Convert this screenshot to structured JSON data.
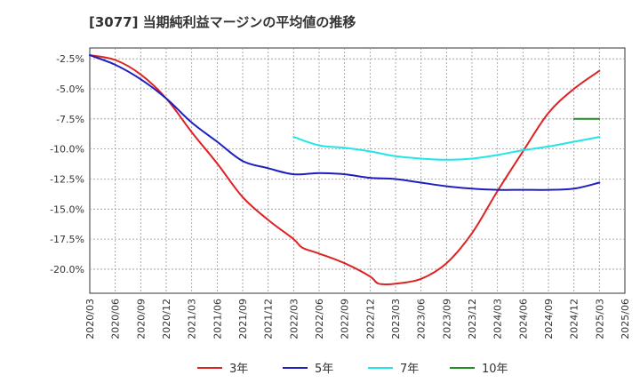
{
  "chart_data": {
    "type": "line",
    "title": "[3077]  当期純利益マージンの平均値の推移",
    "xlabel": "",
    "ylabel": "",
    "x_ticks": [
      "2020/03",
      "2020/06",
      "2020/09",
      "2020/12",
      "2021/03",
      "2021/06",
      "2021/09",
      "2021/12",
      "2022/03",
      "2022/06",
      "2022/09",
      "2022/12",
      "2023/03",
      "2023/06",
      "2023/09",
      "2023/12",
      "2024/03",
      "2024/06",
      "2024/09",
      "2024/12",
      "2025/03",
      "2025/06"
    ],
    "y_ticks": [
      -2.5,
      -5.0,
      -7.5,
      -10.0,
      -12.5,
      -15.0,
      -17.5,
      -20.0
    ],
    "y_tick_labels": [
      "-2.5%",
      "-5.0%",
      "-7.5%",
      "-10.0%",
      "-12.5%",
      "-15.0%",
      "-17.5%",
      "-20.0%"
    ],
    "ylim": [
      -22.0,
      -1.6
    ],
    "grid": true,
    "legend_position": "bottom",
    "series": [
      {
        "name": "3年",
        "color": "#dd2222",
        "x": [
          "2020/03",
          "2020/06",
          "2020/09",
          "2020/12",
          "2021/03",
          "2021/06",
          "2021/09",
          "2021/12",
          "2022/03",
          "2022/04",
          "2022/06",
          "2022/09",
          "2022/12",
          "2023/01",
          "2023/03",
          "2023/06",
          "2023/09",
          "2023/12",
          "2024/03",
          "2024/06",
          "2024/09",
          "2024/12",
          "2025/03"
        ],
        "values": [
          -2.2,
          -2.6,
          -3.8,
          -5.8,
          -8.6,
          -11.2,
          -14.0,
          -15.9,
          -17.5,
          -18.2,
          -18.7,
          -19.5,
          -20.6,
          -21.2,
          -21.2,
          -20.8,
          -19.5,
          -17.0,
          -13.5,
          -10.2,
          -7.0,
          -5.0,
          -3.5
        ]
      },
      {
        "name": "5年",
        "color": "#1f1fbf",
        "x": [
          "2020/03",
          "2020/06",
          "2020/09",
          "2020/12",
          "2021/03",
          "2021/06",
          "2021/09",
          "2021/12",
          "2022/03",
          "2022/06",
          "2022/09",
          "2022/12",
          "2023/03",
          "2023/06",
          "2023/09",
          "2023/12",
          "2024/03",
          "2024/06",
          "2024/09",
          "2024/12",
          "2025/03"
        ],
        "values": [
          -2.2,
          -3.0,
          -4.2,
          -5.8,
          -7.8,
          -9.4,
          -11.0,
          -11.6,
          -12.1,
          -12.0,
          -12.1,
          -12.4,
          -12.5,
          -12.8,
          -13.1,
          -13.3,
          -13.4,
          -13.4,
          -13.4,
          -13.3,
          -12.8
        ]
      },
      {
        "name": "7年",
        "color": "#22e5e5",
        "x": [
          "2022/03",
          "2022/06",
          "2022/09",
          "2022/12",
          "2023/03",
          "2023/06",
          "2023/09",
          "2023/12",
          "2024/03",
          "2024/06",
          "2024/09",
          "2024/12",
          "2025/03"
        ],
        "values": [
          -9.0,
          -9.7,
          -9.9,
          -10.2,
          -10.6,
          -10.8,
          -10.9,
          -10.8,
          -10.5,
          -10.1,
          -9.8,
          -9.4,
          -9.0
        ]
      },
      {
        "name": "10年",
        "color": "#228b22",
        "x": [
          "2024/12",
          "2025/03"
        ],
        "values": [
          -7.5,
          -7.5
        ]
      }
    ]
  }
}
